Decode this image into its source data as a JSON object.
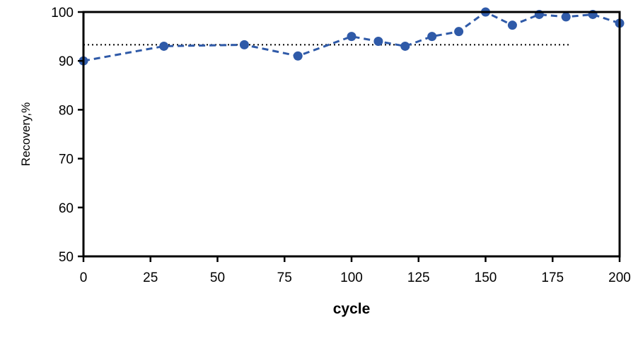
{
  "chart_data": {
    "type": "line",
    "title": "",
    "xlabel": "cycle",
    "ylabel": "Recovery,%",
    "xlim": [
      0,
      200
    ],
    "ylim": [
      50,
      100
    ],
    "x_ticks": [
      0,
      25,
      50,
      75,
      100,
      125,
      150,
      175,
      200
    ],
    "y_ticks": [
      50,
      60,
      70,
      80,
      90,
      100
    ],
    "x_tick_labels": [
      "0",
      "25",
      "50",
      "75",
      "100",
      "125",
      "150",
      "175",
      "200"
    ],
    "y_tick_labels": [
      "50",
      "60",
      "70",
      "80",
      "90",
      "100"
    ],
    "grid": false,
    "legend": "none",
    "series": [
      {
        "x": [
          0,
          30,
          60,
          80,
          100,
          110,
          120,
          130,
          140,
          150,
          160,
          170,
          180,
          190,
          200
        ],
        "y": [
          90,
          93,
          93.3,
          91,
          95,
          94,
          93,
          95,
          96,
          100,
          97.3,
          99.5,
          99,
          99.5,
          97.7
        ],
        "color": "#2f5aa8",
        "line_style": "dashed",
        "marker": "circle"
      }
    ],
    "reference_line": {
      "y": 93.3,
      "x_start": 0,
      "x_end": 182,
      "style": "dotted",
      "color": "#000000"
    }
  }
}
